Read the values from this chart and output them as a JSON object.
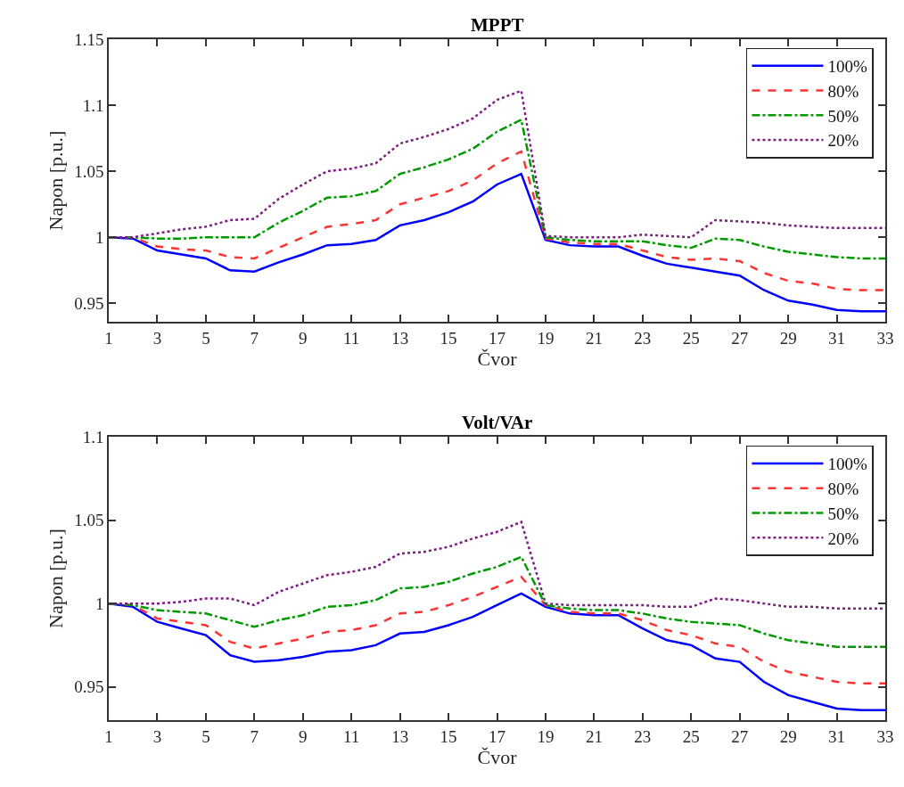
{
  "chart_data": [
    {
      "type": "line",
      "title": "MPPT",
      "xlabel": "Čvor",
      "ylabel": "Napon [p.u.]",
      "x": [
        1,
        2,
        3,
        4,
        5,
        6,
        7,
        8,
        9,
        10,
        11,
        12,
        13,
        14,
        15,
        16,
        17,
        18,
        19,
        20,
        21,
        22,
        23,
        24,
        25,
        26,
        27,
        28,
        29,
        30,
        31,
        32,
        33
      ],
      "xlim": [
        1,
        33
      ],
      "xticks": [
        1,
        3,
        5,
        7,
        9,
        11,
        13,
        15,
        17,
        19,
        21,
        23,
        25,
        27,
        29,
        31,
        33
      ],
      "ylim": [
        0.936,
        1.15
      ],
      "yticks": [
        0.95,
        1,
        1.05,
        1.1,
        1.15
      ],
      "grid": false,
      "legend": "top right",
      "series": [
        {
          "name": "100%",
          "color": "#0000ff",
          "line_style": "solid",
          "values": [
            1.0,
            0.999,
            0.99,
            0.987,
            0.984,
            0.975,
            0.974,
            0.981,
            0.987,
            0.994,
            0.995,
            0.998,
            1.009,
            1.013,
            1.019,
            1.027,
            1.04,
            1.048,
            0.998,
            0.994,
            0.993,
            0.993,
            0.986,
            0.98,
            0.977,
            0.974,
            0.971,
            0.96,
            0.952,
            0.949,
            0.945,
            0.944,
            0.944
          ]
        },
        {
          "name": "80%",
          "color": "#ff3333",
          "line_style": "dashed",
          "values": [
            1.0,
            1.0,
            0.993,
            0.991,
            0.99,
            0.985,
            0.984,
            0.992,
            1.0,
            1.008,
            1.01,
            1.013,
            1.025,
            1.03,
            1.035,
            1.043,
            1.056,
            1.065,
            0.999,
            0.996,
            0.995,
            0.995,
            0.99,
            0.985,
            0.983,
            0.984,
            0.982,
            0.973,
            0.967,
            0.965,
            0.961,
            0.96,
            0.96
          ]
        },
        {
          "name": "50%",
          "color": "#009900",
          "line_style": "dashdot",
          "values": [
            1.0,
            1.0,
            0.999,
            0.999,
            1.0,
            1.0,
            1.0,
            1.011,
            1.02,
            1.03,
            1.031,
            1.035,
            1.048,
            1.053,
            1.059,
            1.067,
            1.08,
            1.089,
            1.0,
            0.998,
            0.997,
            0.997,
            0.997,
            0.994,
            0.992,
            0.999,
            0.998,
            0.993,
            0.989,
            0.987,
            0.985,
            0.984,
            0.984
          ]
        },
        {
          "name": "20%",
          "color": "#7e1e80",
          "line_style": "dotted",
          "values": [
            1.0,
            1.0,
            1.003,
            1.006,
            1.008,
            1.013,
            1.014,
            1.029,
            1.04,
            1.05,
            1.052,
            1.056,
            1.071,
            1.076,
            1.082,
            1.09,
            1.104,
            1.111,
            1.001,
            1.0,
            1.0,
            1.0,
            1.002,
            1.001,
            1.0,
            1.013,
            1.012,
            1.011,
            1.009,
            1.008,
            1.007,
            1.007,
            1.007
          ]
        }
      ]
    },
    {
      "type": "line",
      "title": "Volt/VAr",
      "xlabel": "Čvor",
      "ylabel": "Napon [p.u.]",
      "x": [
        1,
        2,
        3,
        4,
        5,
        6,
        7,
        8,
        9,
        10,
        11,
        12,
        13,
        14,
        15,
        16,
        17,
        18,
        19,
        20,
        21,
        22,
        23,
        24,
        25,
        26,
        27,
        28,
        29,
        30,
        31,
        32,
        33
      ],
      "xlim": [
        1,
        33
      ],
      "xticks": [
        1,
        3,
        5,
        7,
        9,
        11,
        13,
        15,
        17,
        19,
        21,
        23,
        25,
        27,
        29,
        31,
        33
      ],
      "ylim": [
        0.93,
        1.1
      ],
      "yticks": [
        0.95,
        1,
        1.05,
        1.1
      ],
      "grid": false,
      "legend": "top right",
      "series": [
        {
          "name": "100%",
          "color": "#0000ff",
          "line_style": "solid",
          "values": [
            1.0,
            0.998,
            0.989,
            0.985,
            0.981,
            0.969,
            0.965,
            0.966,
            0.968,
            0.971,
            0.972,
            0.975,
            0.982,
            0.983,
            0.987,
            0.992,
            0.999,
            1.006,
            0.998,
            0.994,
            0.993,
            0.993,
            0.985,
            0.978,
            0.975,
            0.967,
            0.965,
            0.953,
            0.945,
            0.941,
            0.937,
            0.936,
            0.936
          ]
        },
        {
          "name": "80%",
          "color": "#ff3333",
          "line_style": "dashed",
          "values": [
            1.0,
            0.999,
            0.991,
            0.989,
            0.987,
            0.977,
            0.973,
            0.976,
            0.979,
            0.983,
            0.984,
            0.987,
            0.994,
            0.995,
            0.999,
            1.004,
            1.01,
            1.016,
            0.999,
            0.995,
            0.994,
            0.994,
            0.99,
            0.984,
            0.981,
            0.976,
            0.974,
            0.965,
            0.959,
            0.956,
            0.953,
            0.952,
            0.952
          ]
        },
        {
          "name": "50%",
          "color": "#009900",
          "line_style": "dashdot",
          "values": [
            1.0,
            0.999,
            0.996,
            0.995,
            0.994,
            0.99,
            0.986,
            0.99,
            0.993,
            0.998,
            0.999,
            1.002,
            1.009,
            1.01,
            1.013,
            1.018,
            1.022,
            1.028,
            0.999,
            0.997,
            0.996,
            0.996,
            0.994,
            0.991,
            0.989,
            0.988,
            0.987,
            0.982,
            0.978,
            0.976,
            0.974,
            0.974,
            0.974
          ]
        },
        {
          "name": "20%",
          "color": "#7e1e80",
          "line_style": "dotted",
          "values": [
            1.0,
            1.0,
            1.0,
            1.001,
            1.003,
            1.003,
            0.999,
            1.007,
            1.012,
            1.017,
            1.019,
            1.022,
            1.03,
            1.031,
            1.034,
            1.039,
            1.043,
            1.049,
            1.0,
            0.999,
            0.999,
            0.999,
            0.999,
            0.998,
            0.998,
            1.003,
            1.002,
            1.0,
            0.998,
            0.998,
            0.997,
            0.997,
            0.997
          ]
        }
      ]
    }
  ]
}
